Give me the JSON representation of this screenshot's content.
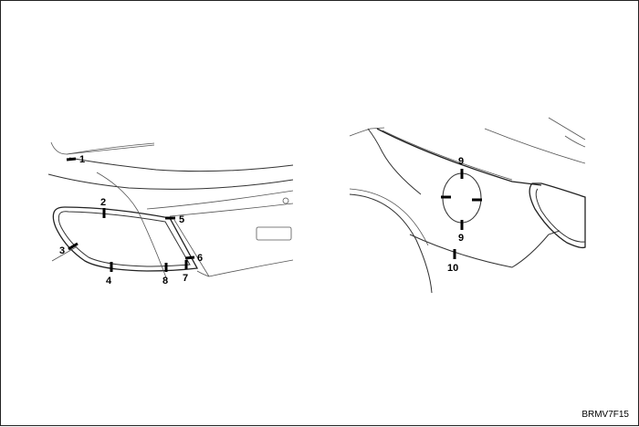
{
  "figure_code": "BRMV7F15",
  "callouts": [
    "1",
    "2",
    "3",
    "4",
    "5",
    "6",
    "7",
    "8",
    "9",
    "9",
    "10"
  ]
}
